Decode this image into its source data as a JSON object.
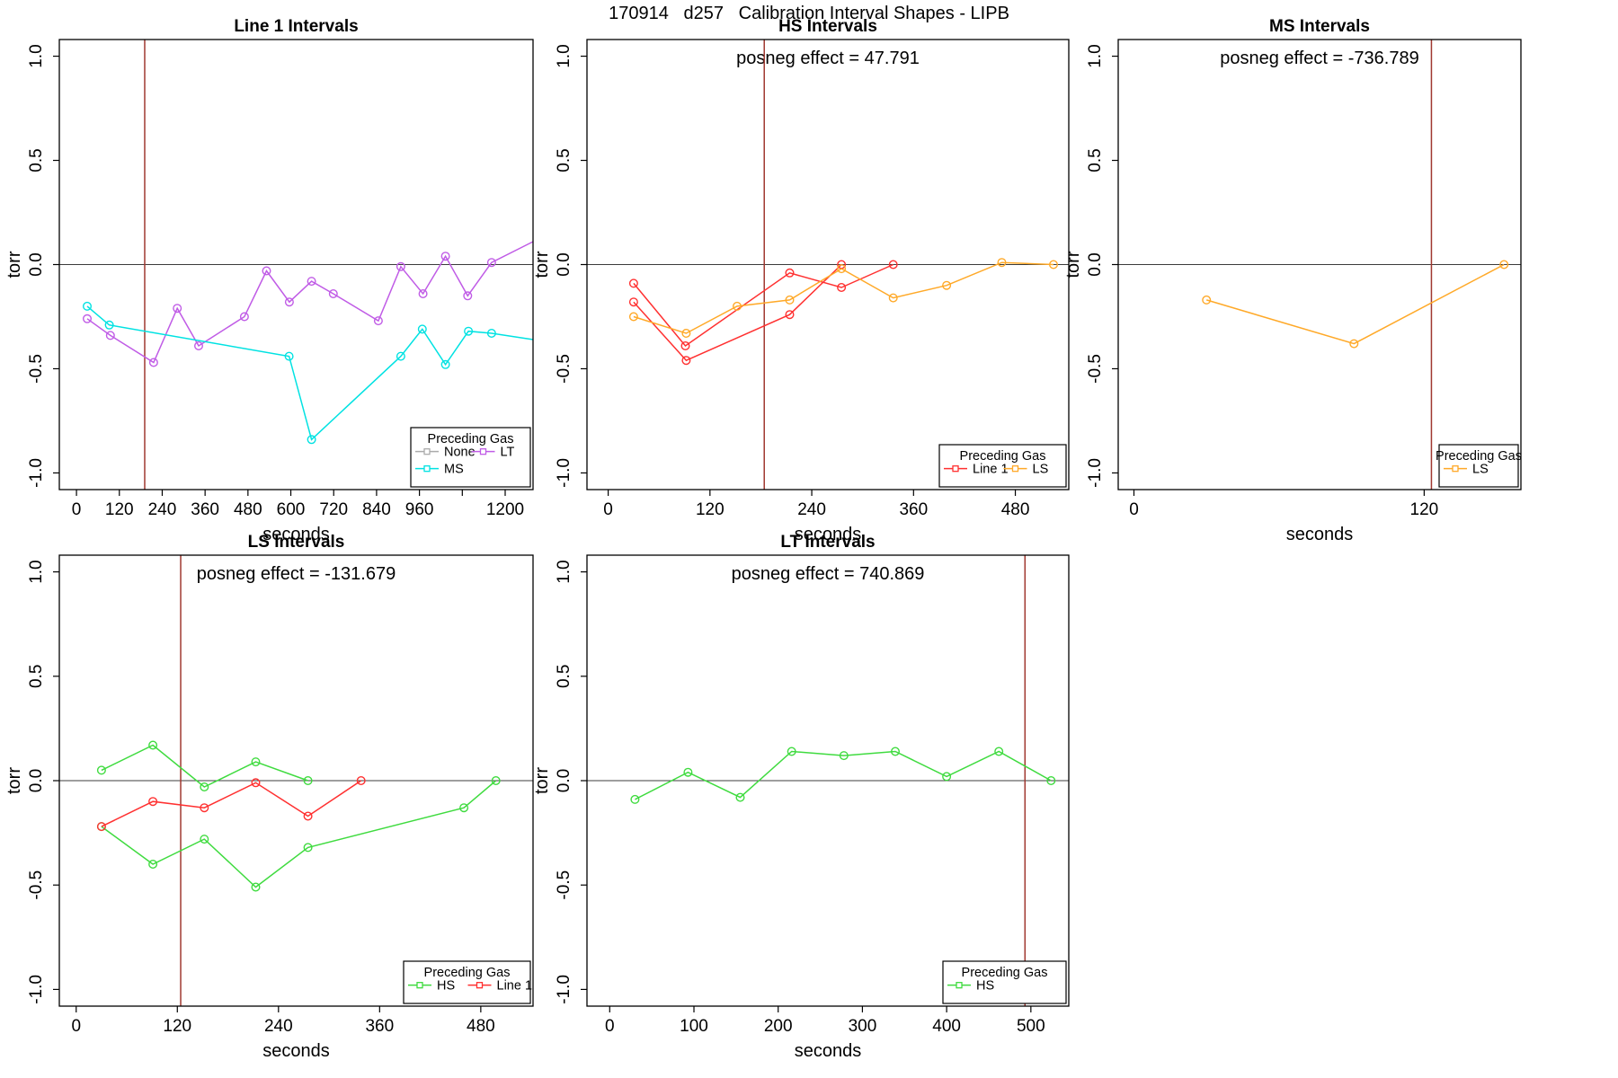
{
  "page_title": "170914   d257   Calibration Interval Shapes - LIPB",
  "axis": {
    "xlabel": "seconds",
    "ylabel": "torr",
    "yticks": [
      {
        "v": 1.0,
        "l": "1.0"
      },
      {
        "v": 0.5,
        "l": "0.5"
      },
      {
        "v": 0.0,
        "l": "0.0"
      },
      {
        "v": -0.5,
        "l": "-0.5"
      },
      {
        "v": -1.0,
        "l": "-1.0"
      }
    ]
  },
  "legend_title": "Preceding Gas",
  "colors": {
    "None": "#ABABAB",
    "Line 1": "#FF3030",
    "HS": "#3FDB3F",
    "LS": "#FFA928",
    "MS": "#00E2E2",
    "LT": "#C05CE6",
    "vline": "#A03830",
    "zero": "#3C3C3C",
    "axis": "#000000"
  },
  "chart_data": [
    {
      "type": "line",
      "id": "line1",
      "title": "Line 1 Intervals",
      "posneg": null,
      "xlim": [
        -48,
        1278
      ],
      "ylim": [
        -1.08,
        1.08
      ],
      "vline": 191,
      "xticks": [
        {
          "v": 0,
          "l": "0"
        },
        {
          "v": 120,
          "l": "120"
        },
        {
          "v": 240,
          "l": "240"
        },
        {
          "v": 360,
          "l": "360"
        },
        {
          "v": 480,
          "l": "480"
        },
        {
          "v": 600,
          "l": "600"
        },
        {
          "v": 720,
          "l": "720"
        },
        {
          "v": 840,
          "l": "840"
        },
        {
          "v": 960,
          "l": "960"
        },
        {
          "v": 1080,
          "l": ""
        },
        {
          "v": 1200,
          "l": "1200"
        }
      ],
      "series": [
        {
          "gas": "LT",
          "points": [
            [
              30,
              -0.26
            ],
            [
              95,
              -0.34
            ],
            [
              216,
              -0.47
            ],
            [
              282,
              -0.21
            ],
            [
              342,
              -0.39
            ],
            [
              470,
              -0.25
            ],
            [
              532,
              -0.03
            ],
            [
              596,
              -0.18
            ],
            [
              658,
              -0.08
            ],
            [
              719,
              -0.14
            ],
            [
              845,
              -0.27
            ],
            [
              908,
              -0.01
            ],
            [
              970,
              -0.14
            ],
            [
              1033,
              0.04
            ],
            [
              1095,
              -0.15
            ],
            [
              1162,
              0.01
            ],
            [
              1278,
              0.11,
              0
            ]
          ]
        },
        {
          "gas": "MS",
          "points": [
            [
              30,
              -0.2
            ],
            [
              92,
              -0.29
            ],
            [
              595,
              -0.44
            ],
            [
              658,
              -0.84
            ],
            [
              908,
              -0.44
            ],
            [
              968,
              -0.31
            ],
            [
              1033,
              -0.48
            ],
            [
              1097,
              -0.32
            ],
            [
              1162,
              -0.33
            ],
            [
              1278,
              -0.36,
              0
            ]
          ]
        }
      ],
      "legend": {
        "cols": 2,
        "items": [
          "None",
          "MS",
          "LT"
        ]
      }
    },
    {
      "type": "line",
      "id": "hs",
      "title": "HS Intervals",
      "posneg": "posneg effect = 47.791",
      "xlim": [
        -25,
        543
      ],
      "ylim": [
        -1.08,
        1.08
      ],
      "vline": 184,
      "xticks": [
        {
          "v": 0,
          "l": "0"
        },
        {
          "v": 120,
          "l": "120"
        },
        {
          "v": 240,
          "l": "240"
        },
        {
          "v": 360,
          "l": "360"
        },
        {
          "v": 480,
          "l": "480"
        }
      ],
      "series": [
        {
          "gas": "Line 1",
          "points": [
            [
              30,
              -0.09
            ],
            [
              91,
              -0.39
            ],
            [
              214,
              -0.04
            ],
            [
              275,
              -0.11
            ],
            [
              336,
              0.0
            ]
          ]
        },
        {
          "gas": "Line 1",
          "points": [
            [
              30,
              -0.18
            ],
            [
              92,
              -0.46
            ],
            [
              214,
              -0.24
            ],
            [
              275,
              0.0
            ]
          ]
        },
        {
          "gas": "LS",
          "points": [
            [
              30,
              -0.25
            ],
            [
              92,
              -0.33
            ],
            [
              152,
              -0.2
            ],
            [
              214,
              -0.17
            ],
            [
              275,
              -0.02
            ],
            [
              336,
              -0.16
            ],
            [
              399,
              -0.1
            ],
            [
              464,
              0.01
            ],
            [
              525,
              0.0
            ]
          ]
        }
      ],
      "legend": {
        "cols": 2,
        "items": [
          "Line 1",
          "LS"
        ]
      }
    },
    {
      "type": "line",
      "id": "ms",
      "title": "MS Intervals",
      "posneg": "posneg effect = -736.789",
      "xlim": [
        -6.5,
        160
      ],
      "ylim": [
        -1.08,
        1.08
      ],
      "vline": 123,
      "xticks": [
        {
          "v": 0,
          "l": "0"
        },
        {
          "v": 120,
          "l": "120"
        }
      ],
      "series": [
        {
          "gas": "LS",
          "points": [
            [
              30,
              -0.17
            ],
            [
              91,
              -0.38
            ],
            [
              153,
              0.0
            ]
          ]
        }
      ],
      "legend": {
        "cols": 1,
        "items": [
          "LS"
        ]
      }
    },
    {
      "type": "line",
      "id": "ls",
      "title": "LS Intervals",
      "posneg": "posneg effect = -131.679",
      "xlim": [
        -20,
        542
      ],
      "ylim": [
        -1.08,
        1.08
      ],
      "vline": 124,
      "xticks": [
        {
          "v": 0,
          "l": "0"
        },
        {
          "v": 120,
          "l": "120"
        },
        {
          "v": 240,
          "l": "240"
        },
        {
          "v": 360,
          "l": "360"
        },
        {
          "v": 480,
          "l": "480"
        }
      ],
      "series": [
        {
          "gas": "HS",
          "points": [
            [
              30,
              0.05
            ],
            [
              91,
              0.17
            ],
            [
              152,
              -0.03
            ],
            [
              213,
              0.09
            ],
            [
              275,
              0.0
            ]
          ]
        },
        {
          "gas": "HS",
          "points": [
            [
              30,
              -0.22
            ],
            [
              91,
              -0.4
            ],
            [
              152,
              -0.28
            ],
            [
              213,
              -0.51
            ],
            [
              275,
              -0.32
            ],
            [
              460,
              -0.13
            ],
            [
              498,
              0.0
            ]
          ]
        },
        {
          "gas": "Line 1",
          "points": [
            [
              30,
              -0.22
            ],
            [
              91,
              -0.1
            ],
            [
              152,
              -0.13
            ],
            [
              213,
              -0.01
            ],
            [
              275,
              -0.17
            ],
            [
              338,
              0.0
            ]
          ]
        }
      ],
      "legend": {
        "cols": 2,
        "items": [
          "HS",
          "Line 1"
        ]
      }
    },
    {
      "type": "line",
      "id": "lt",
      "title": "LT Intervals",
      "posneg": "posneg effect = 740.869",
      "xlim": [
        -27,
        545
      ],
      "ylim": [
        -1.08,
        1.08
      ],
      "vline": 493,
      "xticks": [
        {
          "v": 0,
          "l": "0"
        },
        {
          "v": 100,
          "l": "100"
        },
        {
          "v": 200,
          "l": "200"
        },
        {
          "v": 300,
          "l": "300"
        },
        {
          "v": 400,
          "l": "400"
        },
        {
          "v": 500,
          "l": "500"
        }
      ],
      "series": [
        {
          "gas": "HS",
          "points": [
            [
              30,
              -0.09
            ],
            [
              93,
              0.04
            ],
            [
              155,
              -0.08
            ],
            [
              216,
              0.14
            ],
            [
              278,
              0.12
            ],
            [
              339,
              0.14
            ],
            [
              400,
              0.02
            ],
            [
              462,
              0.14
            ],
            [
              524,
              0.0
            ]
          ]
        }
      ],
      "legend": {
        "cols": 1,
        "items": [
          "HS"
        ]
      }
    }
  ]
}
